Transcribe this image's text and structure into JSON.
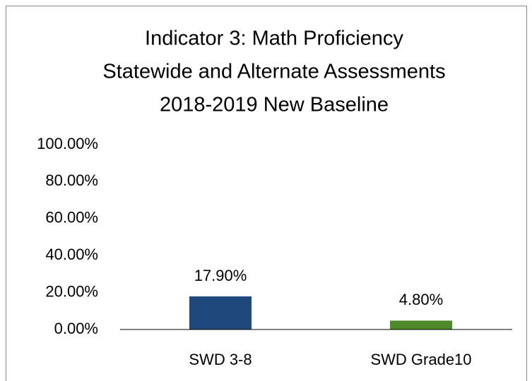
{
  "chart_data": {
    "type": "bar",
    "title": [
      "Indicator 3: Math Proficiency",
      "Statewide and Alternate Assessments",
      "2018-2019 New Baseline"
    ],
    "categories": [
      "SWD 3-8",
      "SWD Grade10"
    ],
    "values": [
      17.9,
      4.8
    ],
    "value_labels": [
      "17.90%",
      "4.80%"
    ],
    "colors": [
      "#1f497d",
      "#4e8a2a"
    ],
    "ylim": [
      0,
      100
    ],
    "yticks": [
      {
        "value": 0,
        "label": "0.00%"
      },
      {
        "value": 20,
        "label": "20.00%"
      },
      {
        "value": 40,
        "label": "40.00%"
      },
      {
        "value": 60,
        "label": "60.00%"
      },
      {
        "value": 80,
        "label": "80.00%"
      },
      {
        "value": 100,
        "label": "100.00%"
      }
    ],
    "grid": false
  }
}
